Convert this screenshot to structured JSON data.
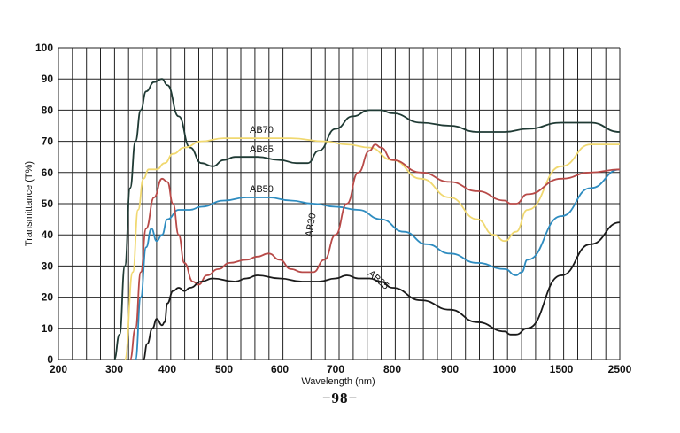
{
  "page": {
    "number": "−98−"
  },
  "chart_data": {
    "type": "line",
    "xlabel": "Wavelength (nm)",
    "ylabel": "Transmittance (T%)",
    "ylim": [
      0,
      100
    ],
    "x_tick_labels": [
      "200",
      "300",
      "400",
      "500",
      "600",
      "700",
      "800",
      "900",
      "1000",
      "1500",
      "2500"
    ],
    "y_tick_labels": [
      "0",
      "10",
      "20",
      "30",
      "40",
      "50",
      "60",
      "70",
      "80",
      "90",
      "100"
    ],
    "grid": true,
    "series": [
      {
        "name": "AB70",
        "color": "#1f3a34",
        "points": [
          [
            300,
            0
          ],
          [
            310,
            8
          ],
          [
            320,
            30
          ],
          [
            330,
            55
          ],
          [
            340,
            70
          ],
          [
            350,
            80
          ],
          [
            360,
            86
          ],
          [
            375,
            89
          ],
          [
            390,
            90
          ],
          [
            400,
            88
          ],
          [
            420,
            78
          ],
          [
            440,
            68
          ],
          [
            460,
            63
          ],
          [
            480,
            62
          ],
          [
            500,
            64
          ],
          [
            520,
            65
          ],
          [
            560,
            65
          ],
          [
            600,
            64
          ],
          [
            630,
            63
          ],
          [
            650,
            63
          ],
          [
            670,
            67
          ],
          [
            700,
            74
          ],
          [
            730,
            78
          ],
          [
            760,
            80
          ],
          [
            780,
            80
          ],
          [
            800,
            79
          ],
          [
            850,
            76
          ],
          [
            900,
            75
          ],
          [
            950,
            73
          ],
          [
            1000,
            73
          ],
          [
            1200,
            74
          ],
          [
            1500,
            76
          ],
          [
            2000,
            76
          ],
          [
            2500,
            73
          ]
        ]
      },
      {
        "name": "AB65",
        "color": "#f0d870",
        "points": [
          [
            320,
            0
          ],
          [
            335,
            28
          ],
          [
            345,
            48
          ],
          [
            355,
            58
          ],
          [
            365,
            61
          ],
          [
            380,
            61
          ],
          [
            395,
            63
          ],
          [
            410,
            66
          ],
          [
            430,
            68
          ],
          [
            460,
            70
          ],
          [
            500,
            71
          ],
          [
            560,
            71
          ],
          [
            620,
            71
          ],
          [
            680,
            70
          ],
          [
            720,
            69
          ],
          [
            760,
            68
          ],
          [
            800,
            64
          ],
          [
            850,
            58
          ],
          [
            900,
            52
          ],
          [
            950,
            45
          ],
          [
            980,
            40
          ],
          [
            1000,
            38
          ],
          [
            1100,
            41
          ],
          [
            1200,
            48
          ],
          [
            1500,
            62
          ],
          [
            2000,
            69
          ],
          [
            2500,
            69
          ]
        ]
      },
      {
        "name": "AB50",
        "color": "#2e8cc0",
        "points": [
          [
            340,
            0
          ],
          [
            350,
            20
          ],
          [
            360,
            36
          ],
          [
            370,
            42
          ],
          [
            380,
            38
          ],
          [
            390,
            40
          ],
          [
            400,
            45
          ],
          [
            420,
            48
          ],
          [
            440,
            48
          ],
          [
            460,
            49
          ],
          [
            500,
            51
          ],
          [
            540,
            52
          ],
          [
            580,
            52
          ],
          [
            620,
            51
          ],
          [
            660,
            50
          ],
          [
            700,
            49
          ],
          [
            740,
            48
          ],
          [
            780,
            45
          ],
          [
            820,
            41
          ],
          [
            860,
            37
          ],
          [
            900,
            34
          ],
          [
            950,
            31
          ],
          [
            1000,
            29
          ],
          [
            1100,
            27
          ],
          [
            1150,
            28
          ],
          [
            1200,
            32
          ],
          [
            1500,
            46
          ],
          [
            2000,
            55
          ],
          [
            2500,
            61
          ]
        ]
      },
      {
        "name": "AB30",
        "color": "#b84a48",
        "points": [
          [
            330,
            0
          ],
          [
            340,
            10
          ],
          [
            350,
            28
          ],
          [
            360,
            42
          ],
          [
            375,
            52
          ],
          [
            390,
            58
          ],
          [
            400,
            57
          ],
          [
            410,
            50
          ],
          [
            420,
            40
          ],
          [
            430,
            31
          ],
          [
            445,
            25
          ],
          [
            455,
            24
          ],
          [
            470,
            27
          ],
          [
            490,
            29
          ],
          [
            510,
            31
          ],
          [
            540,
            32
          ],
          [
            560,
            33
          ],
          [
            580,
            34
          ],
          [
            600,
            32
          ],
          [
            620,
            29
          ],
          [
            640,
            28
          ],
          [
            660,
            28
          ],
          [
            680,
            32
          ],
          [
            700,
            40
          ],
          [
            720,
            50
          ],
          [
            740,
            60
          ],
          [
            760,
            67
          ],
          [
            770,
            69
          ],
          [
            780,
            68
          ],
          [
            800,
            64
          ],
          [
            850,
            60
          ],
          [
            900,
            57
          ],
          [
            950,
            54
          ],
          [
            1000,
            51
          ],
          [
            1050,
            50
          ],
          [
            1100,
            50
          ],
          [
            1200,
            53
          ],
          [
            1500,
            58
          ],
          [
            2000,
            60
          ],
          [
            2500,
            61
          ]
        ]
      },
      {
        "name": "AB25",
        "color": "#1a1a1a",
        "points": [
          [
            355,
            0
          ],
          [
            362,
            5
          ],
          [
            372,
            10
          ],
          [
            380,
            13
          ],
          [
            390,
            11
          ],
          [
            395,
            12
          ],
          [
            400,
            18
          ],
          [
            410,
            22
          ],
          [
            420,
            23
          ],
          [
            430,
            22
          ],
          [
            440,
            23
          ],
          [
            460,
            25
          ],
          [
            480,
            26
          ],
          [
            520,
            25
          ],
          [
            540,
            26
          ],
          [
            560,
            27
          ],
          [
            600,
            26
          ],
          [
            640,
            25
          ],
          [
            670,
            25
          ],
          [
            700,
            26
          ],
          [
            720,
            27
          ],
          [
            740,
            26
          ],
          [
            760,
            26
          ],
          [
            780,
            25
          ],
          [
            800,
            23
          ],
          [
            850,
            19
          ],
          [
            900,
            16
          ],
          [
            950,
            12
          ],
          [
            1000,
            9
          ],
          [
            1050,
            8
          ],
          [
            1100,
            8
          ],
          [
            1200,
            10
          ],
          [
            1500,
            27
          ],
          [
            2000,
            37
          ],
          [
            2500,
            44
          ]
        ]
      }
    ]
  }
}
